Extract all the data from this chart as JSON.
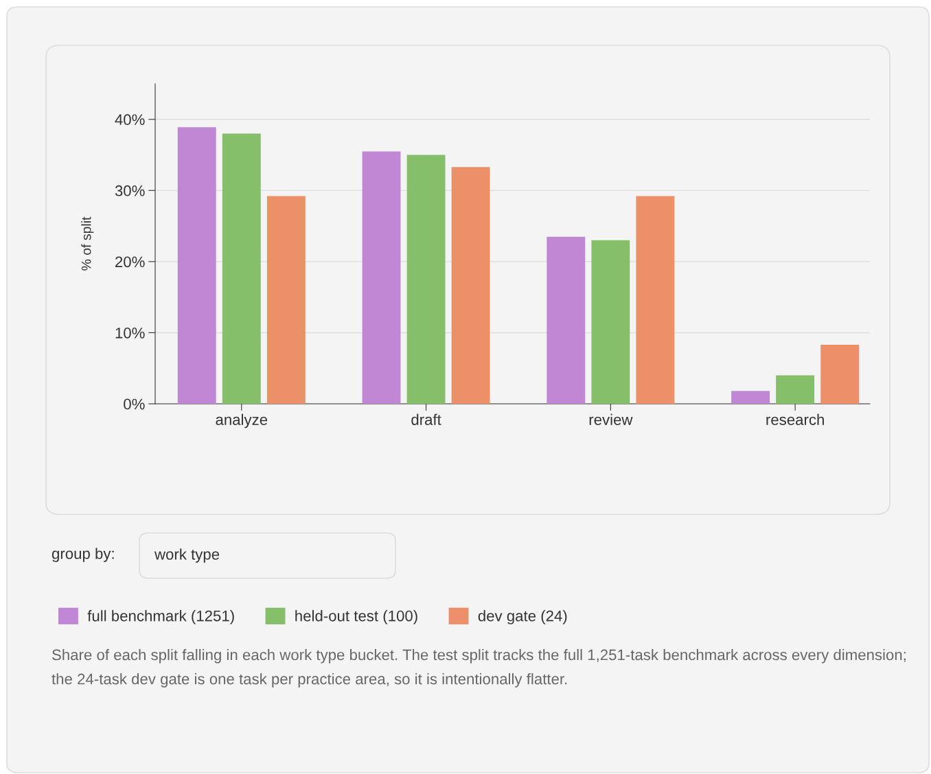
{
  "chart_data": {
    "type": "bar",
    "ylabel": "% of split",
    "categories": [
      "analyze",
      "draft",
      "review",
      "research"
    ],
    "series": [
      {
        "name": "full benchmark (1251)",
        "color": "#bf87d4",
        "values": [
          38.9,
          35.5,
          23.5,
          1.8
        ]
      },
      {
        "name": "held-out test (100)",
        "color": "#86bf6a",
        "values": [
          38,
          35,
          23,
          4
        ]
      },
      {
        "name": "dev gate (24)",
        "color": "#eb9068",
        "values": [
          29.2,
          33.3,
          29.2,
          8.3
        ]
      }
    ],
    "ylim": [
      0,
      45
    ],
    "yticks": [
      {
        "value": 0,
        "label": "0%"
      },
      {
        "value": 10,
        "label": "10%"
      },
      {
        "value": 20,
        "label": "20%"
      },
      {
        "value": 30,
        "label": "30%"
      },
      {
        "value": 40,
        "label": "40%"
      }
    ],
    "grid": "y",
    "legend": "bottom",
    "annotations": [
      "group by:",
      "work type",
      "Share of each split falling in each work type bucket. The test split tracks the full 1,251-task benchmark across every dimension; the 24-task dev gate is one task per practice area, so it is intentionally flatter."
    ]
  }
}
